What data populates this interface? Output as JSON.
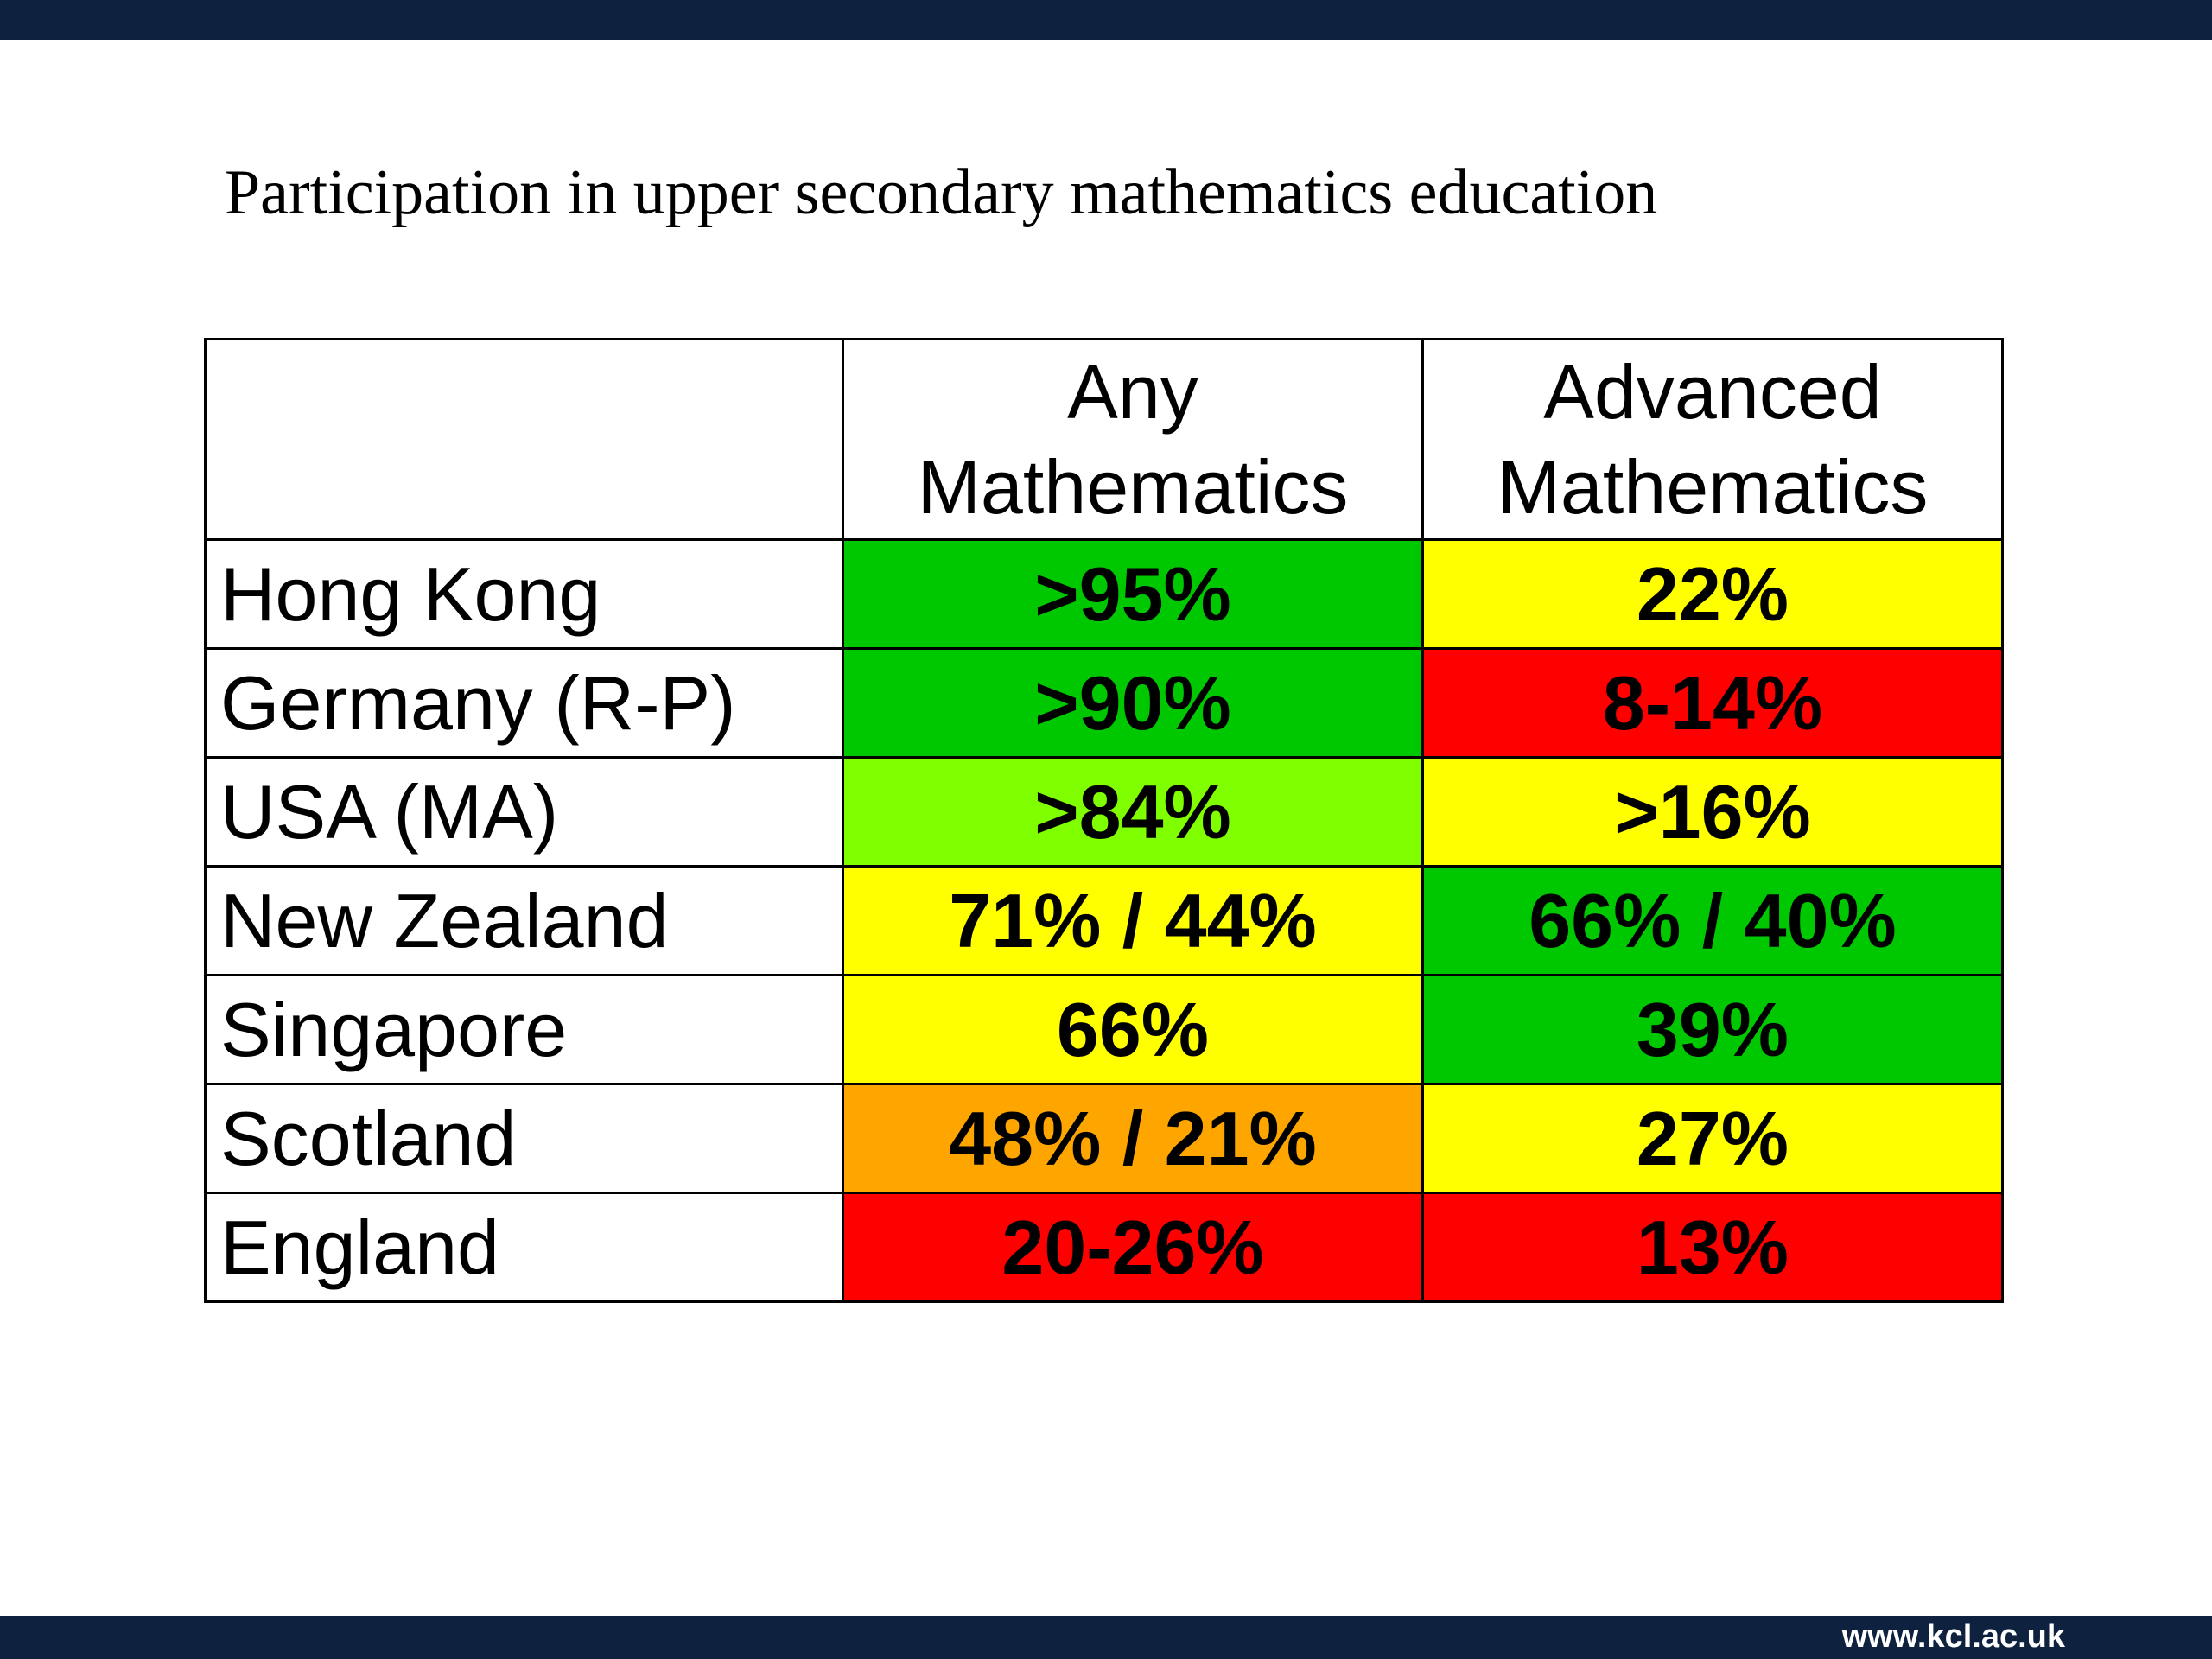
{
  "slide": {
    "title": "Participation in upper secondary mathematics education",
    "footer_url": "www.kcl.ac.uk"
  },
  "table": {
    "headers": [
      "",
      "Any Mathematics",
      "Advanced Mathematics"
    ],
    "header_lines": {
      "any": [
        "Any",
        "Mathematics"
      ],
      "advanced": [
        "Advanced",
        "Mathematics"
      ]
    },
    "rows": [
      {
        "country": "Hong Kong",
        "any": "&gt;95%",
        "advanced": "22%",
        "any_color": "#00c800",
        "advanced_color": "#ffff00"
      },
      {
        "country": "Germany (R-P)",
        "any": "&gt;90%",
        "advanced": "8-14%",
        "any_color": "#00c800",
        "advanced_color": "#ff0000"
      },
      {
        "country": "USA (MA)",
        "any": "&gt;84%",
        "advanced": "&gt;16%",
        "any_color": "#80ff00",
        "advanced_color": "#ffff00"
      },
      {
        "country": "New Zealand",
        "any": "71% / 44%",
        "advanced": "66% / 40%",
        "any_color": "#ffff00",
        "advanced_color": "#00c800"
      },
      {
        "country": "Singapore",
        "any": "66%",
        "advanced": "39%",
        "any_color": "#ffff00",
        "advanced_color": "#00c800"
      },
      {
        "country": "Scotland",
        "any": "48% / 21%",
        "advanced": "27%",
        "any_color": "#ffa500",
        "advanced_color": "#ffff00"
      },
      {
        "country": "England",
        "any": "20-26%",
        "advanced": "13%",
        "any_color": "#ff0000",
        "advanced_color": "#ff0000"
      }
    ]
  },
  "colors": {
    "header_bar": "#0e2240",
    "green": "#00c800",
    "light_green": "#80ff00",
    "yellow": "#ffff00",
    "orange": "#ffa500",
    "red": "#ff0000"
  }
}
